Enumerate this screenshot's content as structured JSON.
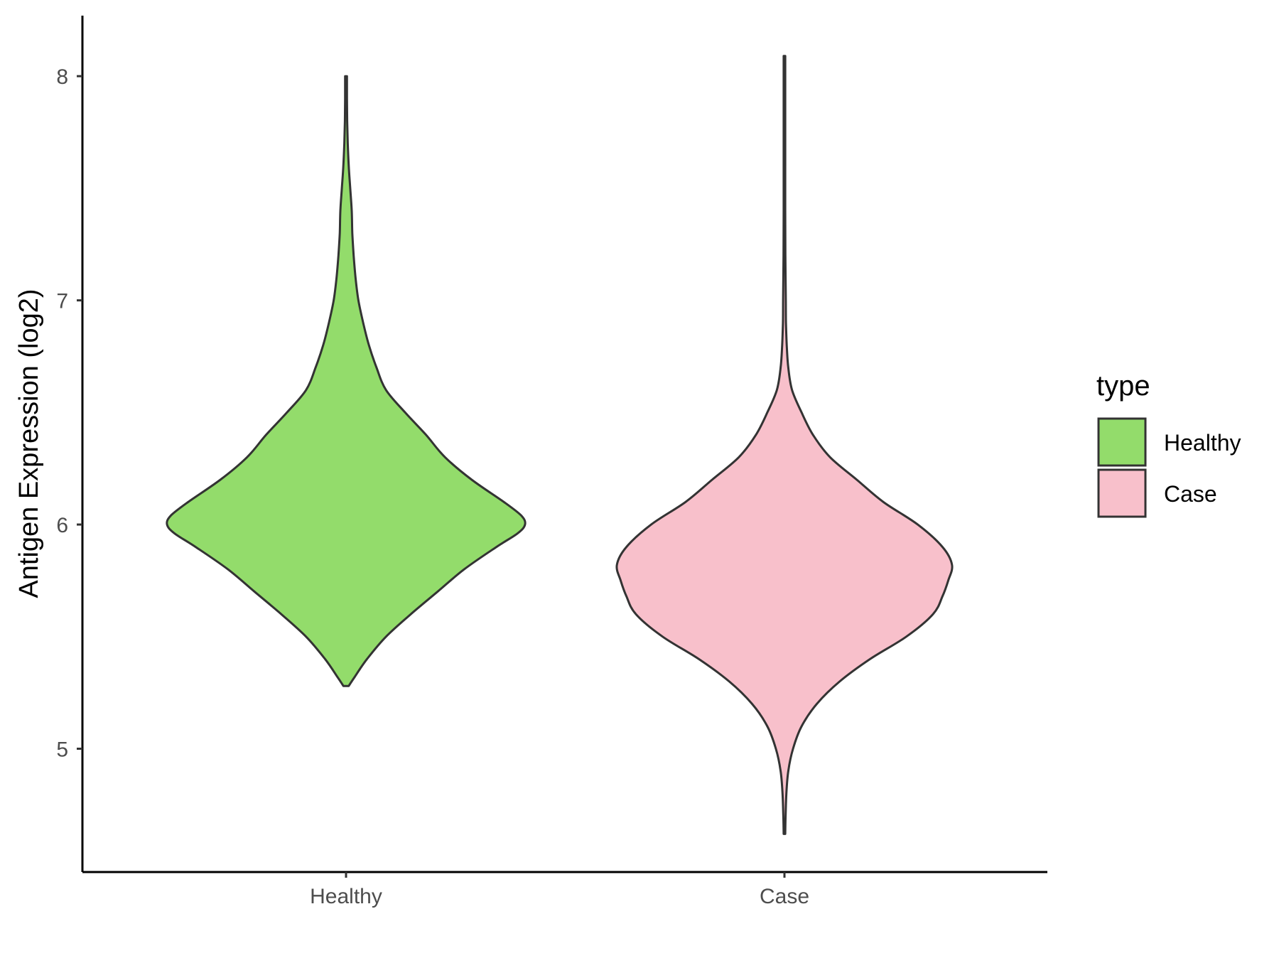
{
  "chart_data": {
    "type": "violin",
    "title": "",
    "xlabel": "",
    "ylabel": "Antigen Expression (log2)",
    "ylim": [
      4.45,
      8.27
    ],
    "yticks": [
      5,
      6,
      7,
      8
    ],
    "categories": [
      "Healthy",
      "Case"
    ],
    "legend": {
      "title": "type",
      "position": "right",
      "entries": [
        {
          "label": "Healthy",
          "color": "#93DC6B"
        },
        {
          "label": "Case",
          "color": "#F8C0CB"
        }
      ]
    },
    "grid": false,
    "series": [
      {
        "category": "Healthy",
        "color": "#93DC6B",
        "density_profile": [
          [
            5.28,
            0.014
          ],
          [
            5.32,
            0.045
          ],
          [
            5.4,
            0.11
          ],
          [
            5.5,
            0.21
          ],
          [
            5.6,
            0.34
          ],
          [
            5.7,
            0.48
          ],
          [
            5.8,
            0.62
          ],
          [
            5.9,
            0.79
          ],
          [
            5.96,
            0.9
          ],
          [
            6.0,
            0.94
          ],
          [
            6.04,
            0.92
          ],
          [
            6.1,
            0.83
          ],
          [
            6.2,
            0.66
          ],
          [
            6.3,
            0.52
          ],
          [
            6.4,
            0.42
          ],
          [
            6.5,
            0.31
          ],
          [
            6.6,
            0.21
          ],
          [
            6.7,
            0.16
          ],
          [
            6.8,
            0.12
          ],
          [
            6.9,
            0.09
          ],
          [
            7.0,
            0.065
          ],
          [
            7.1,
            0.05
          ],
          [
            7.2,
            0.04
          ],
          [
            7.3,
            0.033
          ],
          [
            7.4,
            0.03
          ],
          [
            7.5,
            0.022
          ],
          [
            7.6,
            0.014
          ],
          [
            7.7,
            0.009
          ],
          [
            7.8,
            0.006
          ],
          [
            7.9,
            0.005
          ],
          [
            8.0,
            0.005
          ]
        ]
      },
      {
        "category": "Case",
        "color": "#F8C0CB",
        "density_profile": [
          [
            4.62,
            0.004
          ],
          [
            4.7,
            0.006
          ],
          [
            4.8,
            0.01
          ],
          [
            4.9,
            0.02
          ],
          [
            5.0,
            0.045
          ],
          [
            5.1,
            0.09
          ],
          [
            5.2,
            0.17
          ],
          [
            5.3,
            0.29
          ],
          [
            5.4,
            0.45
          ],
          [
            5.5,
            0.64
          ],
          [
            5.6,
            0.78
          ],
          [
            5.68,
            0.83
          ],
          [
            5.75,
            0.86
          ],
          [
            5.82,
            0.88
          ],
          [
            5.9,
            0.83
          ],
          [
            6.0,
            0.7
          ],
          [
            6.1,
            0.52
          ],
          [
            6.2,
            0.38
          ],
          [
            6.3,
            0.24
          ],
          [
            6.4,
            0.15
          ],
          [
            6.5,
            0.09
          ],
          [
            6.6,
            0.04
          ],
          [
            6.7,
            0.02
          ],
          [
            6.8,
            0.012
          ],
          [
            6.9,
            0.008
          ],
          [
            7.0,
            0.007
          ],
          [
            7.2,
            0.005
          ],
          [
            7.4,
            0.004
          ],
          [
            7.6,
            0.004
          ],
          [
            7.8,
            0.004
          ],
          [
            8.0,
            0.004
          ],
          [
            8.09,
            0.004
          ]
        ]
      }
    ]
  }
}
